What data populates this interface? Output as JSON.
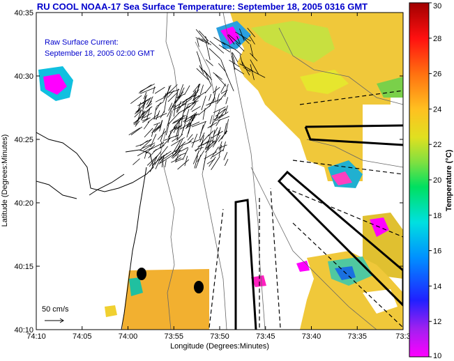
{
  "title": "RU COOL  NOAA-17  Sea Surface Temperature:  September 18, 2005 0316 GMT",
  "current_label_line1": "Raw Surface Current:",
  "current_label_line2": "September 18, 2005 02:00 GMT",
  "scale_label": "50 cm/s",
  "xlabel": "Longitude (Degrees:Minutes)",
  "ylabel": "Latitude (Degrees:Minutes)",
  "x_ticks": [
    "74:10",
    "74:05",
    "74:00",
    "73:55",
    "73:50",
    "73:45",
    "73:40",
    "73:35",
    "73:3"
  ],
  "y_ticks": [
    "40:35",
    "40:30",
    "40:25",
    "40:20",
    "40:15",
    "40:10"
  ],
  "colorbar": {
    "label": "Temperature (°C)",
    "min": 10,
    "max": 30,
    "ticks": [
      "30",
      "28",
      "26",
      "24",
      "22",
      "20",
      "18",
      "16",
      "14",
      "12",
      "10"
    ]
  },
  "colors": {
    "title": "#0000cc",
    "land": "#ffffff",
    "sst_warm": "#f2c233",
    "sst_yellow": "#e6e62e"
  }
}
